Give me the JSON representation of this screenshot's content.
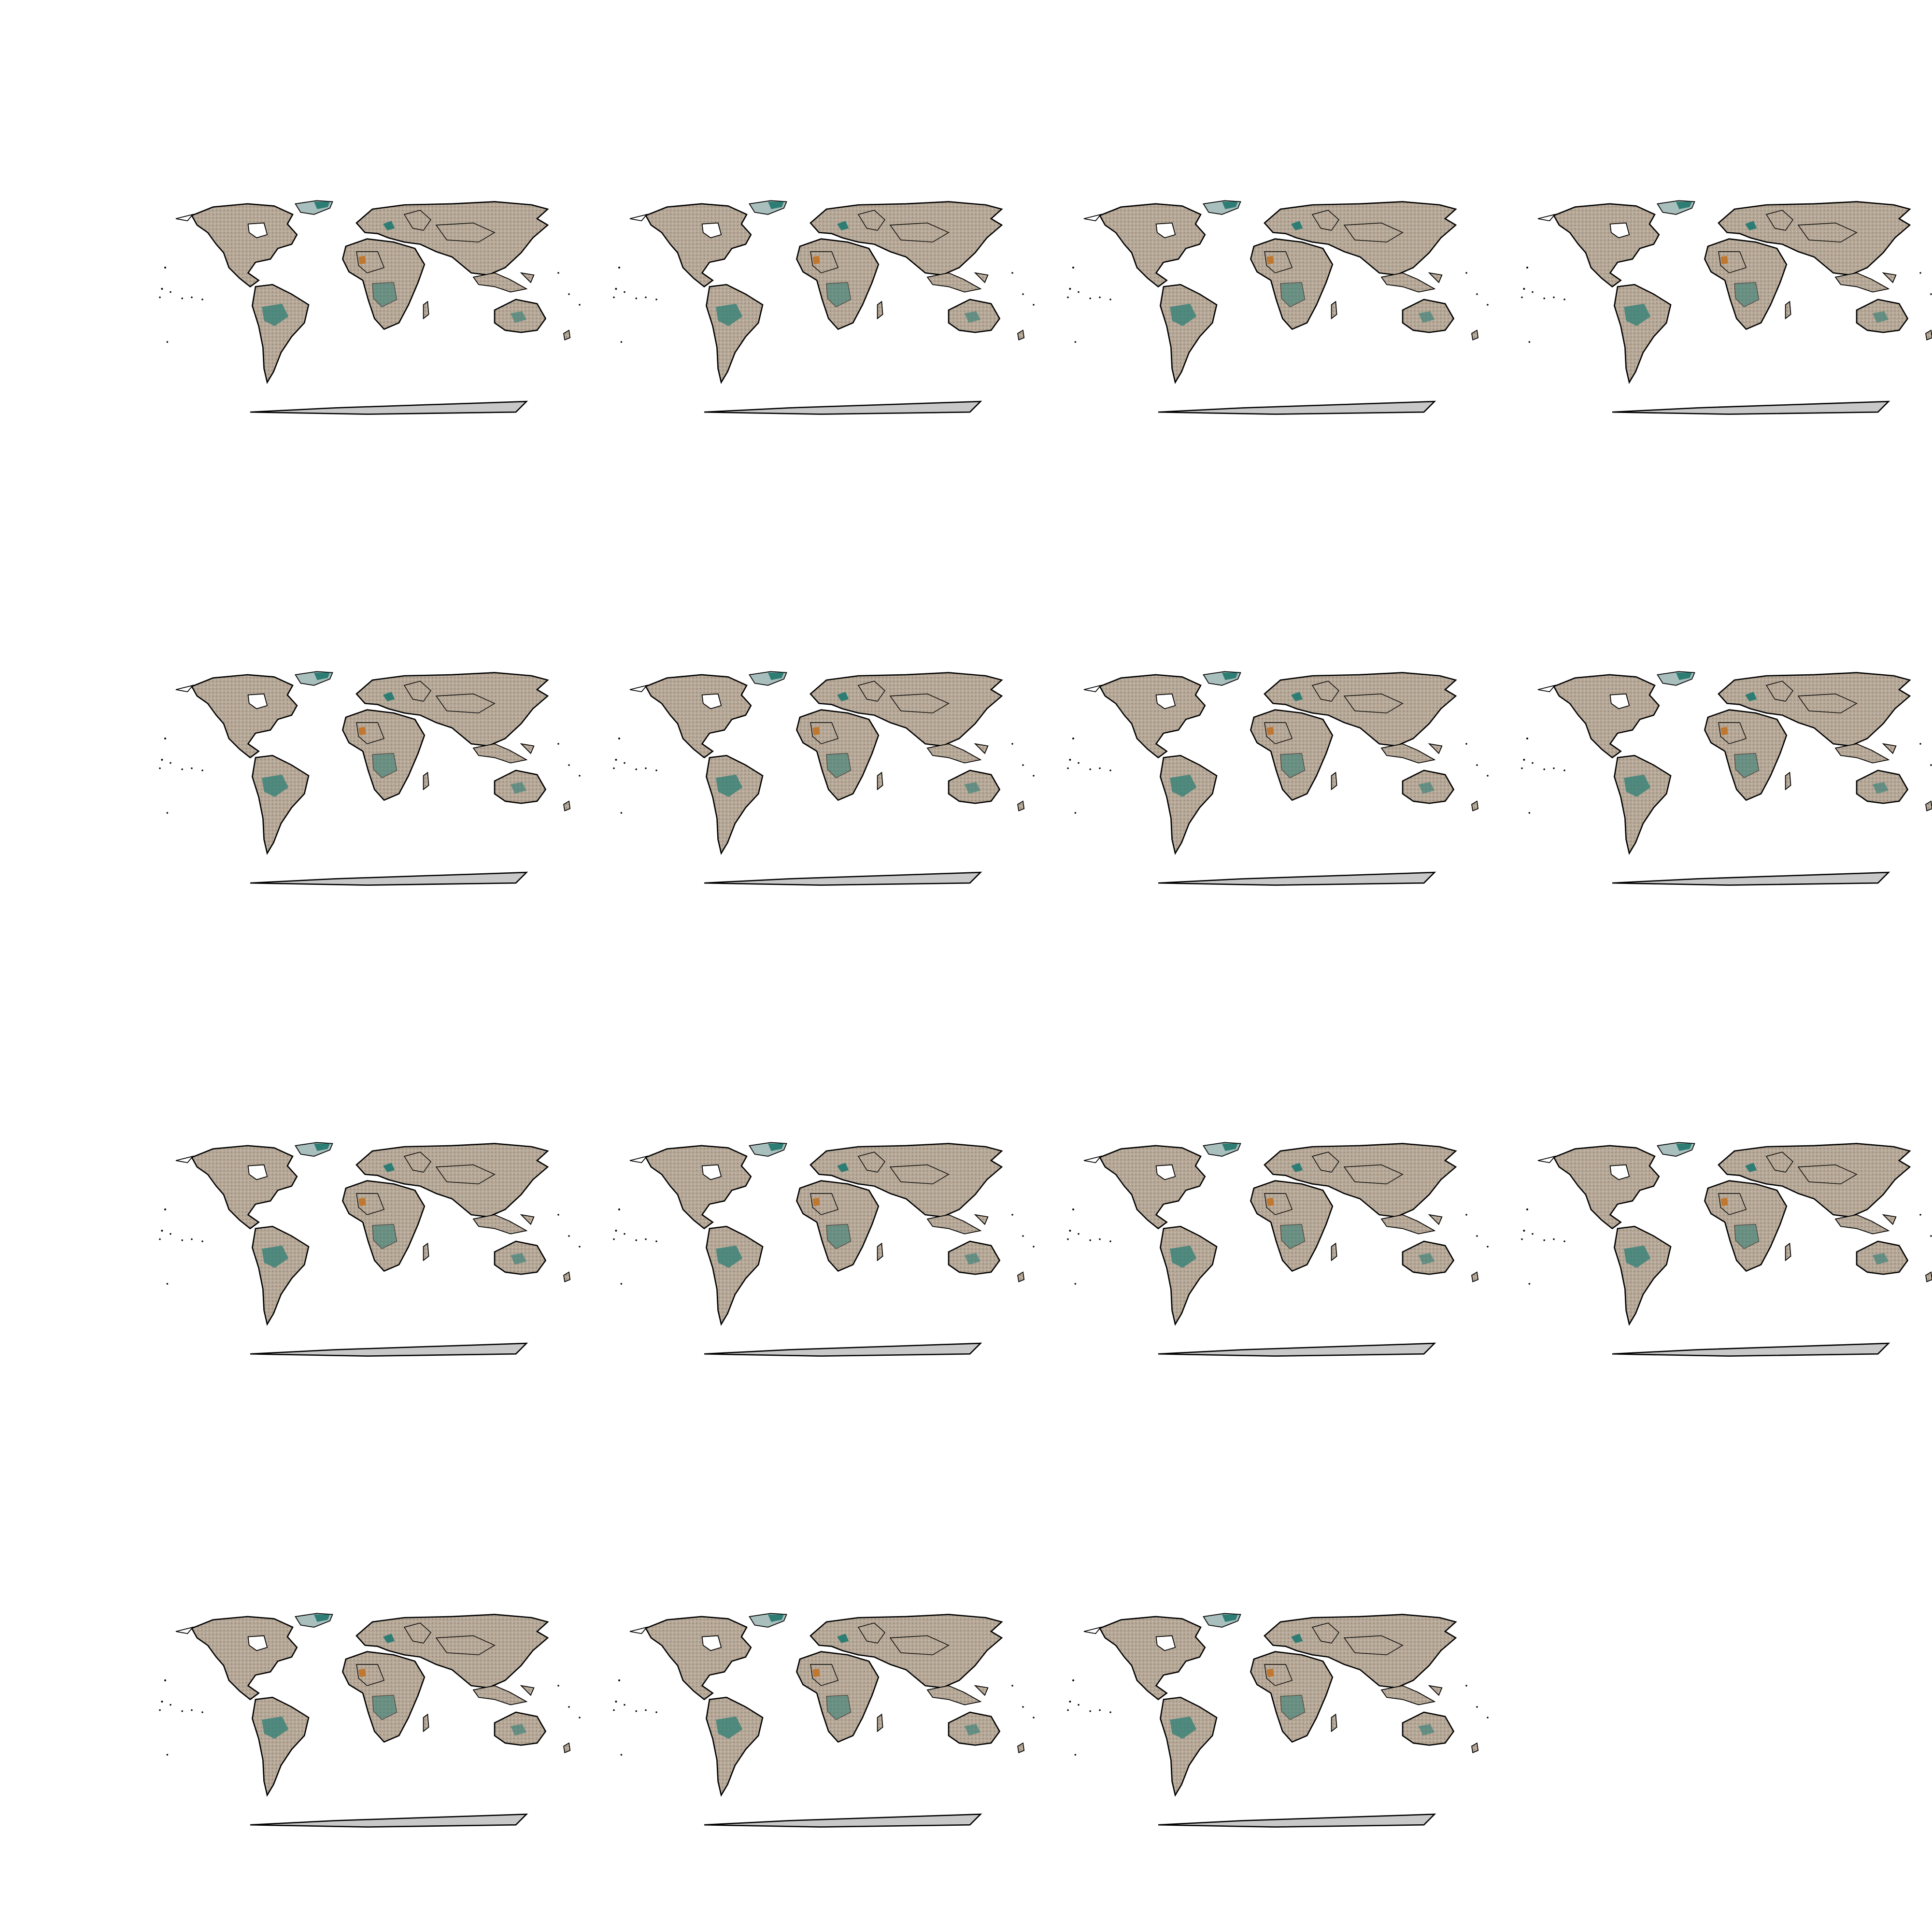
{
  "figure": {
    "layout": {
      "rows": 4,
      "columns": 4
    },
    "panel_count": 15
  },
  "colors": {
    "background": "#ffffff",
    "land_base": "#b5a898",
    "land_stipple_light": "#cfc4b4",
    "land_stipple_dark": "#8e8274",
    "orange_pixels": "#c07830",
    "teal_pixels": "#2e7d74",
    "border_stroke": "#000000",
    "antarctica_fill": "#c8c8c8",
    "greenland_fill": "#a9bfbd"
  }
}
